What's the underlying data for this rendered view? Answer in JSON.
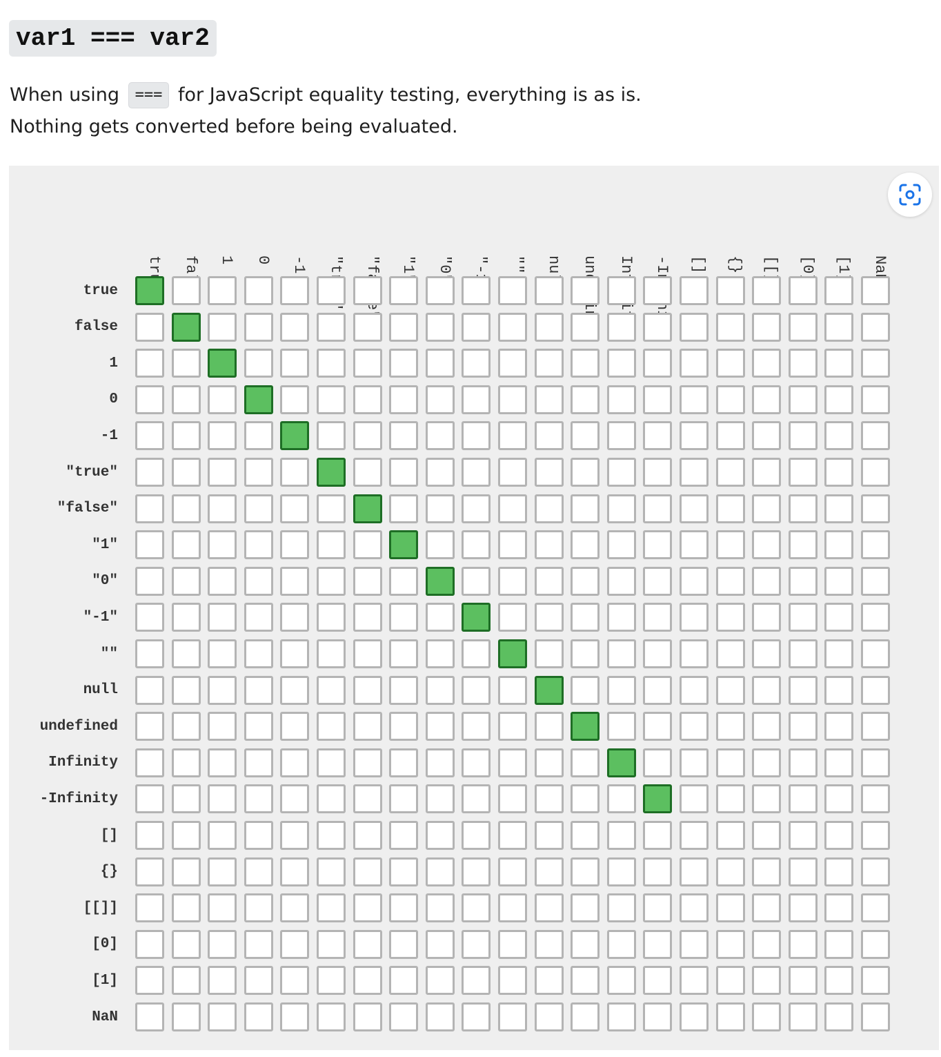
{
  "heading": {
    "code": "var1 === var2"
  },
  "description": {
    "before": "When using",
    "code": "===",
    "after": "for JavaScript equality testing, everything is as is.",
    "line2": "Nothing gets converted before being evaluated."
  },
  "matrix": {
    "operator": "===",
    "values": [
      "true",
      "false",
      "1",
      "0",
      "-1",
      "\"true\"",
      "\"false\"",
      "\"1\"",
      "\"0\"",
      "\"-1\"",
      "\"\"",
      "null",
      "undefined",
      "Infinity",
      "-Infinity",
      "[]",
      "{}",
      "[[]]",
      "[0]",
      "[1]",
      "NaN"
    ],
    "equal_pairs": [
      [
        0,
        0
      ],
      [
        1,
        1
      ],
      [
        2,
        2
      ],
      [
        3,
        3
      ],
      [
        4,
        4
      ],
      [
        5,
        5
      ],
      [
        6,
        6
      ],
      [
        7,
        7
      ],
      [
        8,
        8
      ],
      [
        9,
        9
      ],
      [
        10,
        10
      ],
      [
        11,
        11
      ],
      [
        12,
        12
      ],
      [
        13,
        13
      ],
      [
        14,
        14
      ]
    ],
    "colors": {
      "equal_fill": "#5cbf60",
      "equal_border": "#1e6e25",
      "cell_border": "#b4b4b4",
      "background": "#efefef"
    }
  },
  "toolbar": {
    "lens_icon": "visual-search-icon"
  }
}
